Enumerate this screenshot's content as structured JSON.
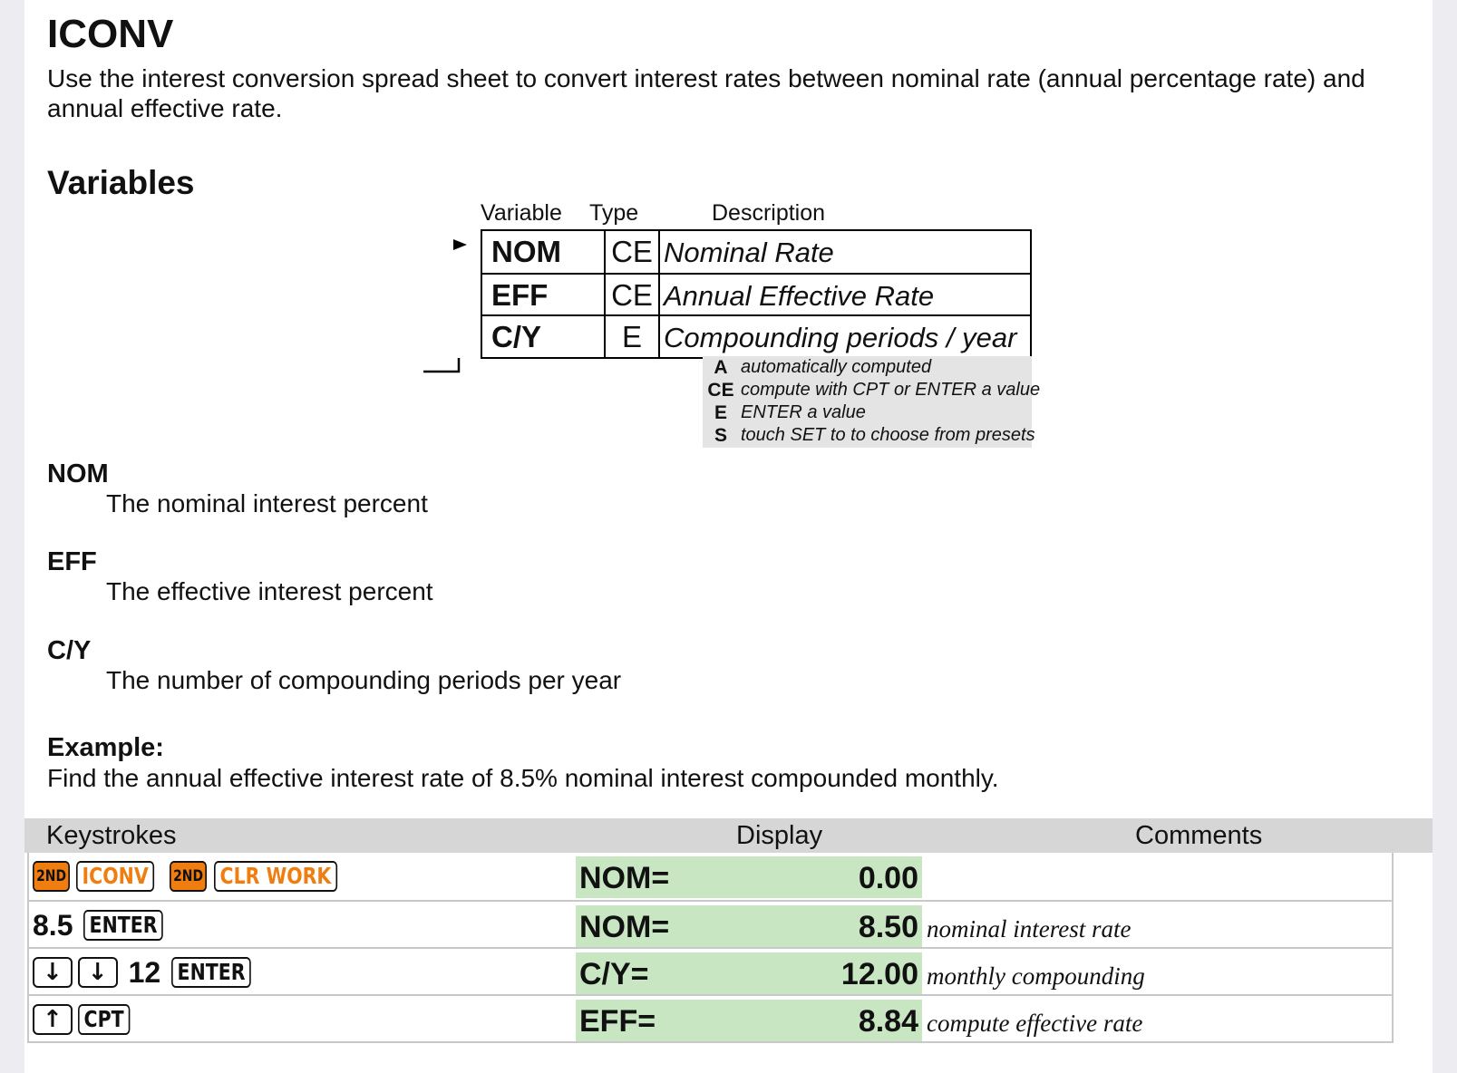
{
  "title": "ICONV",
  "intro": "Use the interest conversion spread sheet to convert interest rates between nominal rate (annual percentage rate) and annual effective rate.",
  "variables_heading": "Variables",
  "diagram": {
    "headers": [
      "Variable",
      "Type",
      "Description"
    ],
    "rows": [
      {
        "name": "NOM",
        "type": "CE",
        "desc": "Nominal Rate"
      },
      {
        "name": "EFF",
        "type": "CE",
        "desc": "Annual Effective Rate"
      },
      {
        "name": "C/Y",
        "type": "E",
        "desc": "Compounding periods / year"
      }
    ],
    "legend": [
      {
        "key": "A",
        "text": "automatically computed"
      },
      {
        "key": "CE",
        "text": "compute with CPT or ENTER a value"
      },
      {
        "key": "E",
        "text": "ENTER a value"
      },
      {
        "key": "S",
        "text": "touch SET to to choose from presets"
      }
    ]
  },
  "definitions": [
    {
      "term": "NOM",
      "text": "The nominal interest percent"
    },
    {
      "term": "EFF",
      "text": "The effective interest percent"
    },
    {
      "term": "C/Y",
      "text": "The number of compounding periods per year"
    }
  ],
  "example": {
    "heading": "Example:",
    "text": "Find the annual effective interest rate of 8.5% nominal interest compounded monthly."
  },
  "keystrokes_table": {
    "headers": {
      "keystrokes": "Keystrokes",
      "display": "Display",
      "comments": "Comments"
    },
    "rows": [
      {
        "keys": [
          {
            "k": "2ND",
            "style": "orange-fill"
          },
          {
            "k": "ICONV",
            "style": "orange"
          },
          {
            "k": "2ND",
            "style": "orange-fill"
          },
          {
            "k": "CLR WORK",
            "style": "orange"
          }
        ],
        "num": "",
        "label": "NOM=",
        "value": "0.00",
        "comment": ""
      },
      {
        "num": "8.5",
        "keys": [
          {
            "k": "ENTER",
            "style": "plain"
          }
        ],
        "label": "NOM=",
        "value": "8.50",
        "comment": "nominal interest rate"
      },
      {
        "pre_keys": [
          "↓",
          "↓"
        ],
        "num": "12",
        "keys": [
          {
            "k": "ENTER",
            "style": "plain"
          }
        ],
        "label": "C/Y=",
        "value": "12.00",
        "comment": "monthly compounding"
      },
      {
        "pre_keys": [
          "↑"
        ],
        "keys": [
          {
            "k": "CPT",
            "style": "plain"
          }
        ],
        "num": "",
        "label": "EFF=",
        "value": "8.84",
        "comment": "compute effective rate"
      }
    ]
  }
}
